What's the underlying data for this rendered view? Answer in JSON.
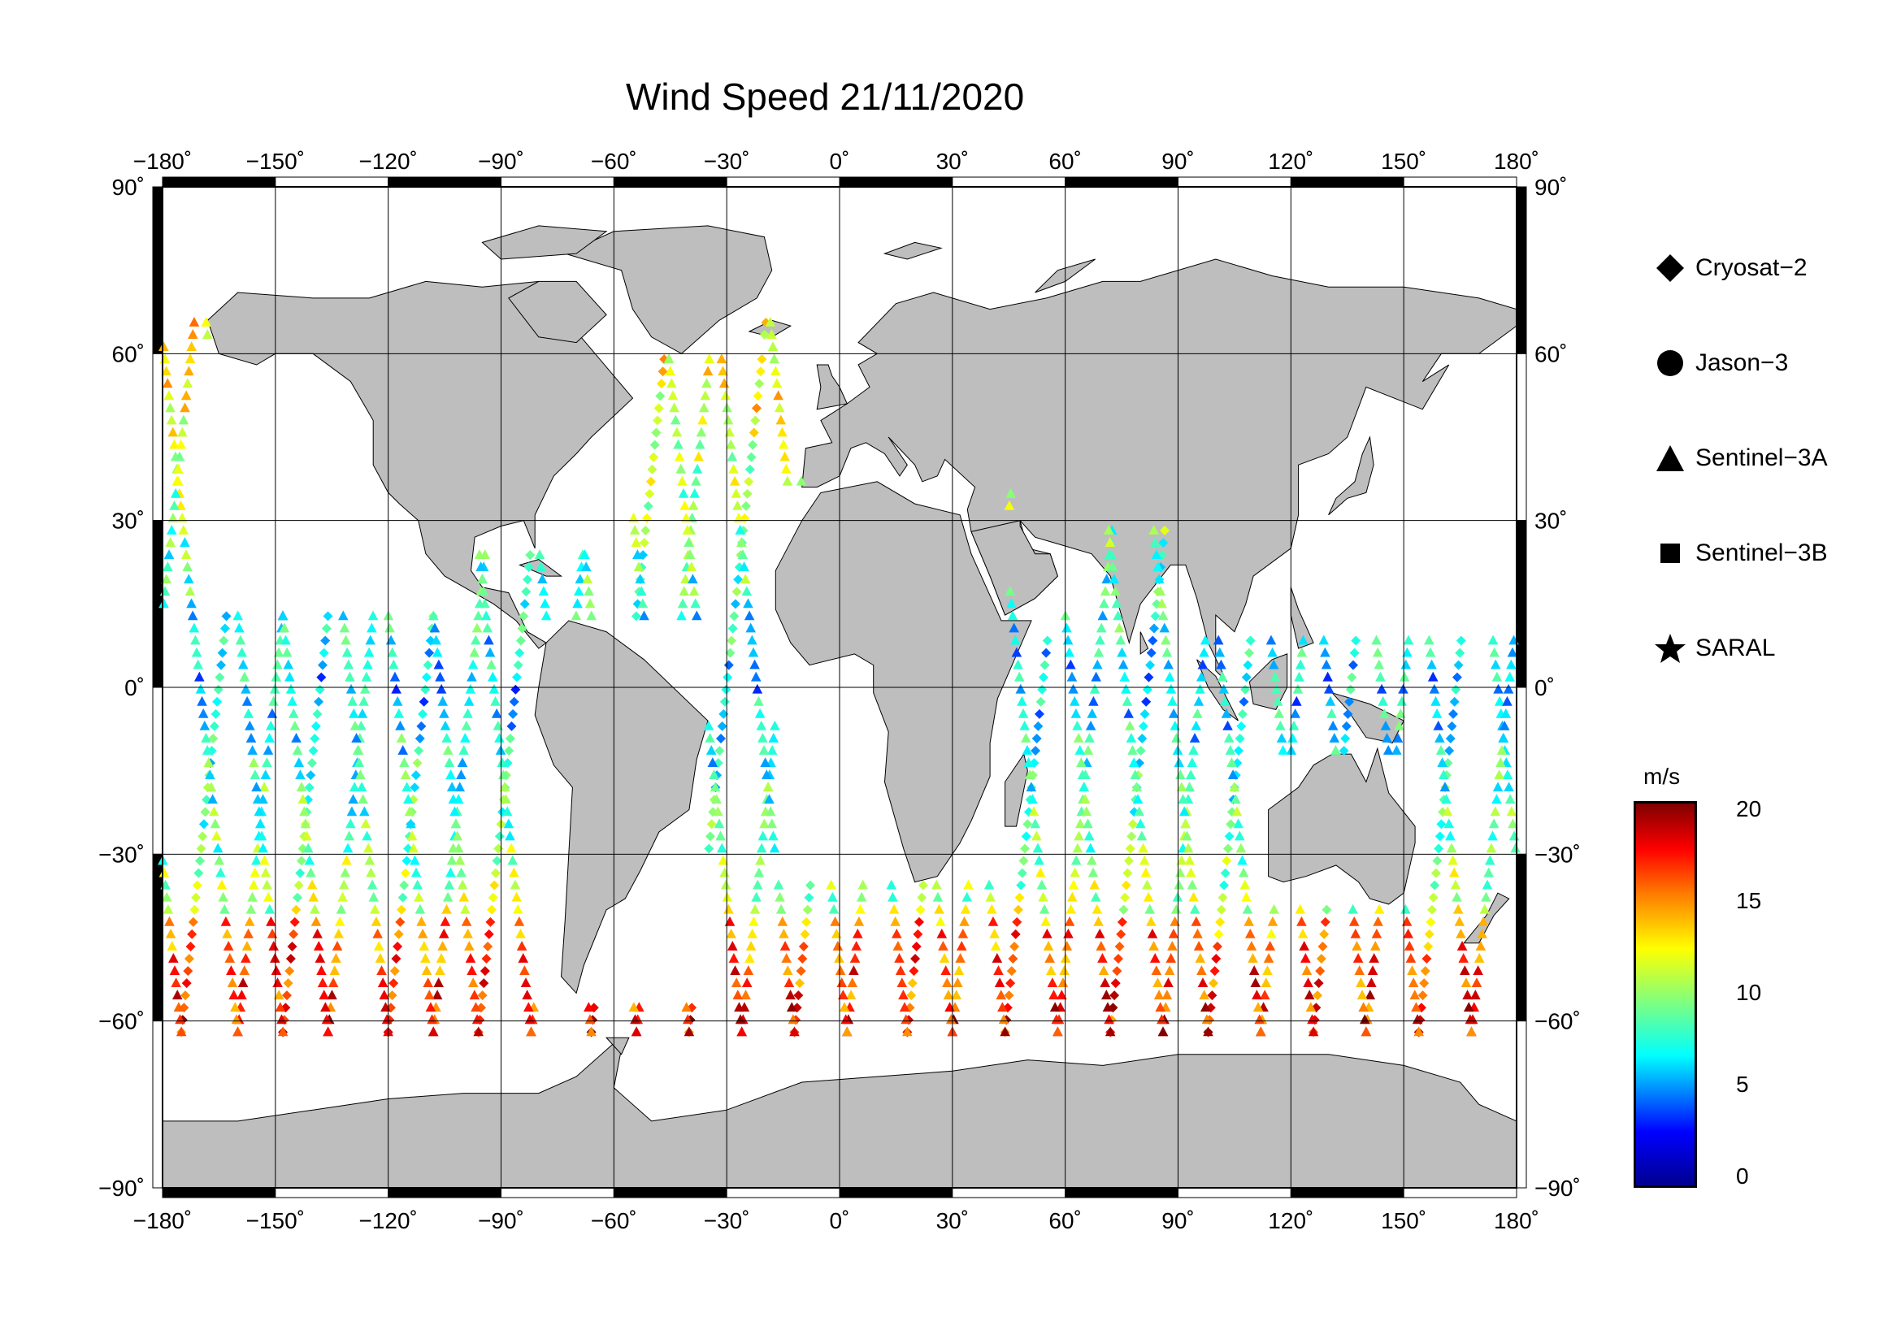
{
  "title": "Wind Speed 21/11/2020",
  "map": {
    "lon_ticks": [
      "−180˚",
      "−150˚",
      "−120˚",
      "−90˚",
      "−60˚",
      "−30˚",
      "0˚",
      "30˚",
      "60˚",
      "90˚",
      "120˚",
      "150˚",
      "180˚"
    ],
    "lat_ticks_left": [
      "90˚",
      "60˚",
      "30˚",
      "0˚",
      "−30˚",
      "−60˚",
      "−90˚"
    ],
    "lat_ticks_right": [
      "90˚",
      "60˚",
      "30˚",
      "0˚",
      "−30˚",
      "−60˚",
      "−90˚"
    ],
    "land_color": "#bebebe",
    "grid": true
  },
  "legend": {
    "items": [
      {
        "label": "Cryosat−2",
        "symbol": "diamond"
      },
      {
        "label": "Jason−3",
        "symbol": "circle"
      },
      {
        "label": "Sentinel−3A",
        "symbol": "triangle"
      },
      {
        "label": "Sentinel−3B",
        "symbol": "square"
      },
      {
        "label": "SARAL",
        "symbol": "star"
      }
    ]
  },
  "colorbar": {
    "unit": "m/s",
    "ticks": [
      "20",
      "15",
      "10",
      "5",
      "0"
    ],
    "range": [
      0,
      20
    ],
    "colors": [
      "#00008f",
      "#0000ff",
      "#00ffff",
      "#7fff7f",
      "#ffff00",
      "#ff7f00",
      "#ff0000",
      "#800000"
    ]
  }
}
